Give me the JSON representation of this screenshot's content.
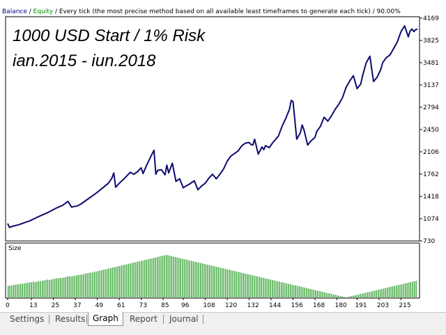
{
  "header": {
    "balance": "Balance",
    "sep1": " / ",
    "equity": "Equity",
    "rest": " / Every tick (the most precise method based on all available least timeframes to generate each tick) / 90.00%"
  },
  "overlay": {
    "line1": "1000 USD Start /   1% Risk",
    "line2": "ian.2015 - iun.2018"
  },
  "colors": {
    "balance_line": "#0b0b6e",
    "balance_text": "#00008b",
    "equity_text": "#008800",
    "volume_bars": "#3aa53a"
  },
  "tabs": [
    {
      "label": "Settings",
      "active": false
    },
    {
      "label": "Results",
      "active": false
    },
    {
      "label": "Graph",
      "active": true
    },
    {
      "label": "Report",
      "active": false
    },
    {
      "label": "Journal",
      "active": false
    }
  ],
  "chart_data": [
    {
      "type": "line",
      "title": "Balance",
      "xlabel": "",
      "ylabel": "",
      "xlim": [
        0,
        224
      ],
      "ylim": [
        730,
        4169
      ],
      "x_ticks": [
        0,
        13,
        25,
        37,
        49,
        61,
        73,
        85,
        96,
        108,
        120,
        132,
        144,
        156,
        168,
        180,
        191,
        203,
        215
      ],
      "y_ticks": [
        "1074",
        "1418",
        "1762",
        "2106",
        "2450",
        "2794",
        "3137",
        "3481",
        "3825",
        "4169"
      ],
      "y_ticks_lower": [
        "730"
      ],
      "series": [
        {
          "name": "Balance",
          "x": [
            0,
            1,
            3,
            6,
            9,
            12,
            15,
            18,
            22,
            26,
            30,
            33,
            35,
            36,
            38,
            40,
            44,
            48,
            52,
            55,
            57,
            58,
            59,
            61,
            64,
            67,
            69,
            71,
            72,
            73,
            74,
            76,
            78,
            80,
            81,
            82,
            84,
            86,
            87,
            88,
            90,
            92,
            94,
            96,
            97,
            99,
            102,
            104,
            106,
            108,
            110,
            112,
            114,
            116,
            118,
            120,
            122,
            124,
            126,
            128,
            130,
            132,
            133,
            134,
            135,
            137,
            139,
            140,
            141,
            143,
            145,
            148,
            150,
            152,
            154,
            155,
            156,
            158,
            160,
            161,
            162,
            164,
            166,
            168,
            169,
            171,
            173,
            175,
            177,
            179,
            181,
            183,
            185,
            187,
            189,
            191,
            193,
            194,
            196,
            198,
            200,
            202,
            204,
            205,
            207,
            209,
            211,
            213,
            215,
            217,
            219,
            220,
            221,
            222,
            223,
            224
          ],
          "y": [
            1000,
            940,
            960,
            980,
            1010,
            1040,
            1080,
            1120,
            1170,
            1230,
            1280,
            1340,
            1250,
            1260,
            1270,
            1300,
            1380,
            1460,
            1550,
            1620,
            1700,
            1780,
            1560,
            1620,
            1700,
            1790,
            1760,
            1800,
            1830,
            1860,
            1770,
            1900,
            2020,
            2130,
            1760,
            1820,
            1830,
            1750,
            1900,
            1780,
            1930,
            1650,
            1690,
            1550,
            1570,
            1600,
            1660,
            1520,
            1580,
            1620,
            1700,
            1760,
            1690,
            1760,
            1840,
            1960,
            2040,
            2080,
            2120,
            2200,
            2240,
            2250,
            2220,
            2210,
            2300,
            2070,
            2180,
            2140,
            2200,
            2170,
            2250,
            2350,
            2500,
            2620,
            2760,
            2900,
            2880,
            2300,
            2400,
            2520,
            2440,
            2210,
            2280,
            2330,
            2420,
            2500,
            2640,
            2580,
            2660,
            2760,
            2840,
            2940,
            3100,
            3200,
            3280,
            3080,
            3150,
            3280,
            3480,
            3580,
            3190,
            3260,
            3380,
            3480,
            3560,
            3600,
            3700,
            3800,
            3960,
            4050,
            3880,
            3970,
            4000,
            3960,
            3990,
            4000
          ]
        }
      ]
    },
    {
      "type": "bar",
      "title": "Size",
      "xlabel": "",
      "ylabel": "",
      "xlim": [
        0,
        224
      ],
      "x_ticks": [
        "0",
        "13",
        "25",
        "37",
        "49",
        "61",
        "73",
        "85",
        "96",
        "108",
        "120",
        "132",
        "144",
        "156",
        "168",
        "180",
        "191",
        "203",
        "215"
      ],
      "values": [
        0.27,
        0.28,
        0.28,
        0.29,
        0.3,
        0.31,
        0.31,
        0.32,
        0.32,
        0.33,
        0.34,
        0.35,
        0.35,
        0.36,
        0.37,
        0.36,
        0.37,
        0.38,
        0.38,
        0.39,
        0.4,
        0.41,
        0.42,
        0.41,
        0.42,
        0.43,
        0.44,
        0.45,
        0.45,
        0.46,
        0.46,
        0.47,
        0.48,
        0.49,
        0.5,
        0.49,
        0.5,
        0.51,
        0.52,
        0.53,
        0.53,
        0.54,
        0.55,
        0.56,
        0.57,
        0.58,
        0.58,
        0.59,
        0.6,
        0.61,
        0.62,
        0.63,
        0.64,
        0.65,
        0.66,
        0.67,
        0.68,
        0.69,
        0.7,
        0.71,
        0.72,
        0.73,
        0.74,
        0.75,
        0.76,
        0.77,
        0.78,
        0.79,
        0.8,
        0.81,
        0.82,
        0.83,
        0.84,
        0.85,
        0.86,
        0.87,
        0.88,
        0.89,
        0.9,
        0.91,
        0.92,
        0.93,
        0.94,
        0.95,
        0.96,
        0.97,
        0.98,
        0.99,
        1.0,
        0.99,
        0.98,
        0.97,
        0.96,
        0.95,
        0.94,
        0.93,
        0.92,
        0.91,
        0.9,
        0.89,
        0.88,
        0.87,
        0.86,
        0.85,
        0.84,
        0.83,
        0.82,
        0.81,
        0.8,
        0.79,
        0.78,
        0.77,
        0.76,
        0.75,
        0.74,
        0.73,
        0.72,
        0.71,
        0.7,
        0.69,
        0.68,
        0.67,
        0.66,
        0.65,
        0.64,
        0.63,
        0.62,
        0.61,
        0.6,
        0.59,
        0.58,
        0.57,
        0.56,
        0.55,
        0.54,
        0.53,
        0.52,
        0.51,
        0.5,
        0.49,
        0.48,
        0.47,
        0.46,
        0.45,
        0.44,
        0.43,
        0.42,
        0.41,
        0.4,
        0.39,
        0.38,
        0.37,
        0.36,
        0.35,
        0.34,
        0.33,
        0.32,
        0.31,
        0.3,
        0.29,
        0.28,
        0.27,
        0.26,
        0.25,
        0.24,
        0.23,
        0.22,
        0.21,
        0.2,
        0.19,
        0.18,
        0.17,
        0.16,
        0.15,
        0.14,
        0.13,
        0.12,
        0.11,
        0.1,
        0.09,
        0.08,
        0.07,
        0.06,
        0.05,
        0.04,
        0.03,
        0.02,
        0.01,
        0.0,
        0.01,
        0.02,
        0.03,
        0.04,
        0.05,
        0.06,
        0.07,
        0.08,
        0.09,
        0.1,
        0.11,
        0.12,
        0.13,
        0.14,
        0.15,
        0.16,
        0.17,
        0.18,
        0.19,
        0.2,
        0.21,
        0.22,
        0.23,
        0.24,
        0.25,
        0.26,
        0.27,
        0.28,
        0.29,
        0.3,
        0.31,
        0.32,
        0.33,
        0.34,
        0.35,
        0.36,
        0.37,
        0.38,
        0.39
      ]
    }
  ]
}
